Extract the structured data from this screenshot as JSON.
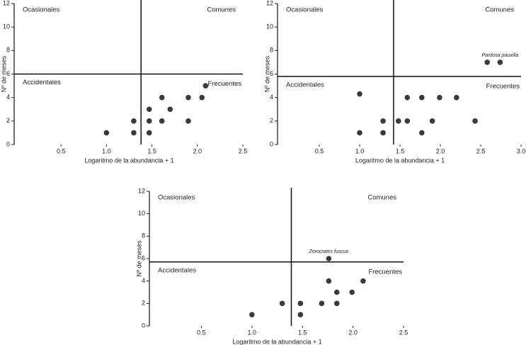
{
  "chart_data": [
    {
      "type": "scatter",
      "xlabel": "Logaritmo de la abundancia + 1",
      "ylabel": "Nº de meses",
      "x": [
        1.0,
        1.3,
        1.3,
        1.47,
        1.47,
        1.47,
        1.61,
        1.61,
        1.7,
        1.9,
        1.9,
        2.05,
        2.09
      ],
      "y": [
        1,
        1,
        2,
        1,
        2,
        3,
        2,
        4,
        3,
        2,
        4,
        4,
        5
      ],
      "color": "#3a3a3a",
      "xlim": [
        0,
        2.5
      ],
      "ylim": [
        0,
        12
      ],
      "xticks": [
        0.5,
        {
          "value": 1,
          "label": "1.0"
        },
        1.5,
        {
          "value": 2,
          "label": "2.0"
        },
        2.5
      ],
      "yticks": [
        0,
        2,
        4,
        6,
        8,
        10,
        12
      ],
      "hline": 6,
      "vline": 1.38,
      "quadrants": {
        "top_left": "Ocasionales",
        "top_right": "Comunes",
        "bottom_left": "Accidentales",
        "bottom_right": "Frecuentes"
      }
    },
    {
      "type": "scatter",
      "xlabel": "Logaritmo de la abundancia + 1",
      "ylabel": "Nº de meses",
      "x": [
        1.0,
        1.0,
        1.29,
        1.29,
        1.48,
        1.59,
        1.59,
        1.77,
        1.77,
        1.9,
        1.99,
        2.2,
        2.43,
        2.58,
        2.74
      ],
      "y": [
        1,
        4.3,
        1,
        2,
        2,
        4,
        2,
        4,
        1,
        2,
        4,
        4,
        2,
        7,
        7
      ],
      "point_labels": [
        null,
        null,
        null,
        null,
        null,
        null,
        null,
        null,
        null,
        null,
        null,
        null,
        null,
        null,
        "Pardosa pauxilla"
      ],
      "color": "#3a3a3a",
      "xlim": [
        0,
        3
      ],
      "ylim": [
        0,
        12
      ],
      "xticks": [
        0.5,
        {
          "value": 1,
          "label": "1.0"
        },
        1.5,
        {
          "value": 2,
          "label": "2.0"
        },
        2.5,
        {
          "value": 3,
          "label": "3.0"
        }
      ],
      "yticks": [
        0,
        2,
        4,
        6,
        8,
        10,
        12
      ],
      "hline": 5.8,
      "vline": 1.42,
      "quadrants": {
        "top_left": "Ocasionales",
        "top_right": "Comunes",
        "bottom_left": "Accidentales",
        "bottom_right": "Frecuentes"
      }
    },
    {
      "type": "scatter",
      "xlabel": "Logaritmo de la abundancia + 1",
      "ylabel": "Nº de meses",
      "x": [
        1.0,
        1.3,
        1.48,
        1.48,
        1.69,
        1.76,
        1.76,
        1.84,
        1.84,
        1.99,
        2.1
      ],
      "y": [
        1,
        2,
        2,
        1,
        2,
        4,
        6,
        3,
        2,
        3,
        4
      ],
      "point_labels": [
        null,
        null,
        null,
        null,
        null,
        null,
        "Zorocrates fuscus",
        null,
        null,
        null,
        null
      ],
      "color": "#3a3a3a",
      "xlim": [
        0,
        2.5
      ],
      "ylim": [
        0,
        12
      ],
      "xticks": [
        0.5,
        {
          "value": 1,
          "label": "1.0"
        },
        1.5,
        {
          "value": 2,
          "label": "2.0"
        },
        2.5
      ],
      "yticks": [
        0,
        2,
        4,
        6,
        8,
        10,
        12
      ],
      "hline": 5.7,
      "vline": 1.39,
      "quadrants": {
        "top_left": "Ocasionales",
        "top_right": "Comunes",
        "bottom_left": "Accidentales",
        "bottom_right": "Frecuentes"
      }
    }
  ]
}
